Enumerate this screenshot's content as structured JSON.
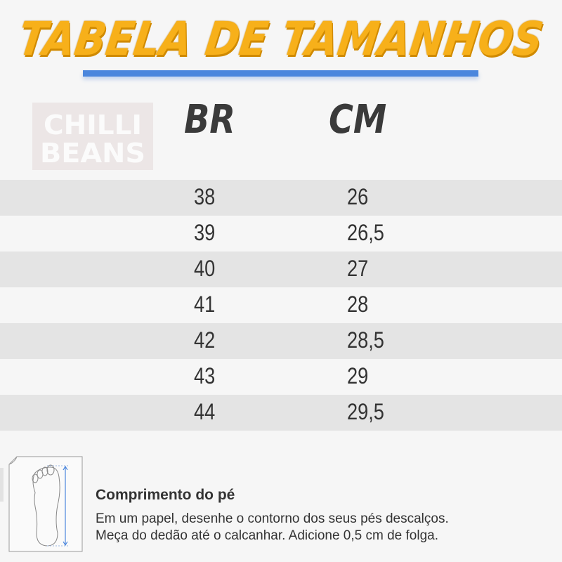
{
  "title": "TABELA DE TAMANHOS",
  "brand_logo": "CHILLI BEANS",
  "colors": {
    "title": "#f7b01a",
    "underline": "#4a86dd",
    "stripe": "#e4e4e4"
  },
  "headers": {
    "br": "BR",
    "cm": "CM"
  },
  "rows": [
    {
      "br": "38",
      "cm": "26"
    },
    {
      "br": "39",
      "cm": "26,5"
    },
    {
      "br": "40",
      "cm": "27"
    },
    {
      "br": "41",
      "cm": "28"
    },
    {
      "br": "42",
      "cm": "28,5"
    },
    {
      "br": "43",
      "cm": "29"
    },
    {
      "br": "44",
      "cm": "29,5"
    }
  ],
  "instructions": {
    "icon": "foot-measure-icon",
    "title": "Comprimento do pé",
    "line1": "Em um papel, desenhe o contorno dos seus pés descalços.",
    "line2": "Meça do dedão até o calcanhar. Adicione 0,5 cm de folga."
  }
}
